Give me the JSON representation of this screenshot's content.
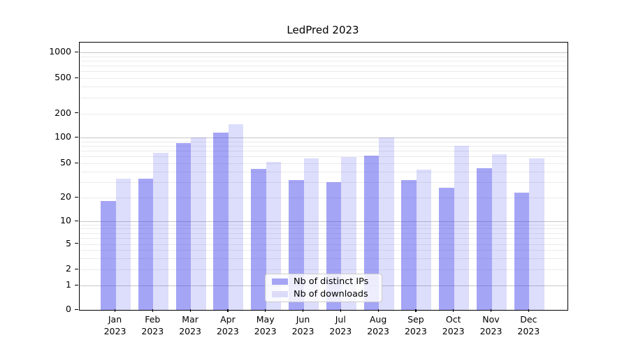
{
  "title": "LedPred 2023",
  "chart_data": {
    "type": "bar",
    "title": "LedPred 2023",
    "categories": [
      "Jan",
      "Feb",
      "Mar",
      "Apr",
      "May",
      "Jun",
      "Jul",
      "Aug",
      "Sep",
      "Oct",
      "Nov",
      "Dec"
    ],
    "year": "2023",
    "series": [
      {
        "name": "Nb of distinct IPs",
        "color": "rgba(55,55,235,0.45)",
        "swatch_color": "#a5a5f3",
        "values": [
          18,
          33,
          86,
          114,
          43,
          32,
          30,
          61,
          32,
          26,
          44,
          23
        ]
      },
      {
        "name": "Nb of downloads",
        "color": "rgba(55,55,235,0.17)",
        "swatch_color": "#dcdcf9",
        "values": [
          33,
          66,
          101,
          147,
          52,
          57,
          59,
          100,
          42,
          80,
          64,
          57
        ]
      }
    ],
    "yscale": "symlog",
    "yticks": [
      0,
      1,
      2,
      5,
      10,
      20,
      50,
      100,
      200,
      500,
      1000
    ],
    "ylim": [
      0,
      1000
    ],
    "grid": true,
    "legend_position": "lower center",
    "colors": {
      "major_grid": "#c6c6c6",
      "minor_grid": "#ebebeb",
      "spine": "#000000"
    }
  }
}
